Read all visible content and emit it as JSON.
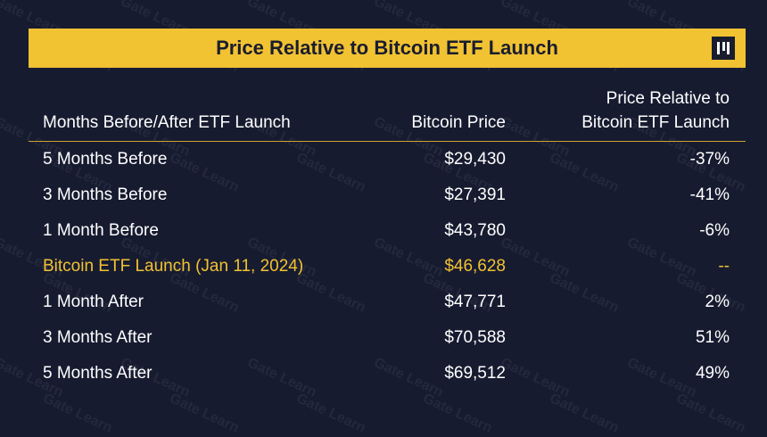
{
  "header": {
    "title": "Price Relative to Bitcoin ETF Launch"
  },
  "watermark": "Gate Learn",
  "table": {
    "columns": [
      "Months Before/After ETF Launch",
      "Bitcoin Price",
      "Price Relative to Bitcoin ETF Launch"
    ],
    "rows": [
      [
        "5 Months Before",
        "$29,430",
        "-37%"
      ],
      [
        "3 Months Before",
        "$27,391",
        "-41%"
      ],
      [
        "1 Month Before",
        "$43,780",
        "-6%"
      ],
      [
        "Bitcoin ETF Launch (Jan 11, 2024)",
        "$46,628",
        "--"
      ],
      [
        "1 Month After",
        "$47,771",
        "2%"
      ],
      [
        "3 Months After",
        "$70,588",
        "51%"
      ],
      [
        "5 Months After",
        "$69,512",
        "49%"
      ]
    ],
    "highlighted_row": 3
  }
}
